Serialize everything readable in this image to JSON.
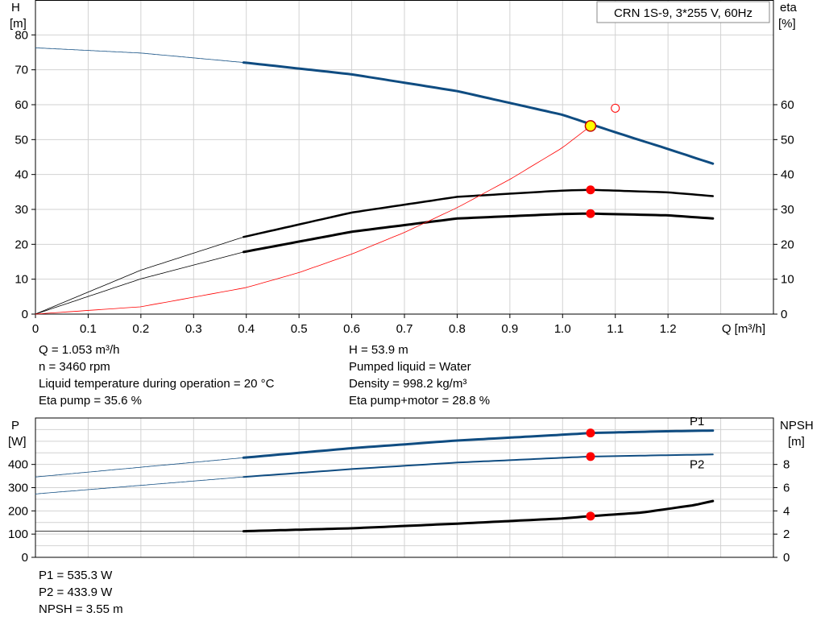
{
  "chart_data": [
    {
      "type": "line",
      "title": "CRN 1S-9, 3*255 V, 60Hz",
      "xlabel": "Q [m³/h]",
      "ylabel_left": "H",
      "ylabel_left_unit": "[m]",
      "ylabel_right": "eta",
      "ylabel_right_unit": "[%]",
      "xlim": [
        0,
        1.4
      ],
      "ylim_left": [
        0,
        90
      ],
      "ylim_right": [
        0,
        90
      ],
      "grid": true,
      "x_ticks": [
        "0",
        "0.1",
        "0.2",
        "0.3",
        "0.4",
        "0.5",
        "0.6",
        "0.7",
        "0.8",
        "0.9",
        "1.0",
        "1.1",
        "1.2"
      ],
      "y_left_ticks": [
        "0",
        "10",
        "20",
        "30",
        "40",
        "50",
        "60",
        "70",
        "80"
      ],
      "y_right_ticks": [
        "0",
        "10",
        "20",
        "30",
        "40",
        "50",
        "60"
      ],
      "series": [
        {
          "color": "#0f4c81",
          "axis": "left",
          "x": [
            0,
            0.2,
            0.395,
            0.6,
            0.8,
            1.0,
            1.1,
            1.2,
            1.285
          ],
          "y": [
            76.3,
            74.8,
            72.1,
            68.7,
            63.9,
            57.1,
            52.1,
            47.3,
            43.1
          ],
          "operating_range": [
            0.395,
            1.285
          ]
        },
        {
          "color": "#000000",
          "axis": "right",
          "x": [
            0,
            0.2,
            0.395,
            0.6,
            0.8,
            1.0,
            1.053,
            1.2,
            1.285
          ],
          "y": [
            0,
            12.6,
            22.1,
            29.1,
            33.6,
            35.4,
            35.6,
            34.9,
            33.8
          ],
          "operating_range": [
            0.395,
            1.285
          ]
        },
        {
          "color": "#000000",
          "axis": "right",
          "x": [
            0,
            0.2,
            0.395,
            0.6,
            0.8,
            1.0,
            1.053,
            1.2,
            1.285
          ],
          "y": [
            0,
            10.1,
            17.8,
            23.6,
            27.4,
            28.7,
            28.8,
            28.3,
            27.4
          ],
          "operating_range": [
            0.395,
            1.285
          ]
        },
        {
          "color": "#ff0000",
          "axis": "left",
          "x": [
            0,
            0.2,
            0.4,
            0.5,
            0.6,
            0.7,
            0.8,
            0.9,
            1.0,
            1.053
          ],
          "y": [
            0,
            2.1,
            7.6,
            11.9,
            17.2,
            23.4,
            30.5,
            38.6,
            47.7,
            53.9
          ]
        }
      ],
      "duty_points": [
        {
          "x": 1.053,
          "y": 53.9,
          "color": "#ffff00",
          "style": "filled-outlined"
        },
        {
          "x": 1.053,
          "y": 35.6,
          "color": "#ff0000",
          "style": "filled"
        },
        {
          "x": 1.053,
          "y": 28.8,
          "color": "#ff0000",
          "style": "filled"
        },
        {
          "x": 1.1,
          "y": 59,
          "color": "#ff0000",
          "style": "hollow"
        }
      ]
    },
    {
      "type": "line",
      "xlim": [
        0,
        1.4
      ],
      "ylabel_left": "P",
      "ylabel_left_unit": "[W]",
      "ylabel_right": "NPSH",
      "ylabel_right_unit": "[m]",
      "ylim_left": [
        0,
        600
      ],
      "ylim_right": [
        0,
        12
      ],
      "grid": true,
      "y_left_ticks": [
        "0",
        "100",
        "200",
        "300",
        "400"
      ],
      "y_right_ticks": [
        "0",
        "2",
        "4",
        "6",
        "8"
      ],
      "series": [
        {
          "name": "P1",
          "color": "#0f4c81",
          "axis": "left",
          "x": [
            0,
            0.395,
            0.6,
            0.8,
            1.0,
            1.053,
            1.2,
            1.285
          ],
          "y": [
            346,
            429,
            470,
            503,
            528,
            535.3,
            543,
            546
          ],
          "operating_range": [
            0.395,
            1.285
          ]
        },
        {
          "name": "P2",
          "color": "#0f4c81",
          "axis": "left",
          "x": [
            0,
            0.395,
            0.6,
            0.8,
            1.0,
            1.053,
            1.2,
            1.285
          ],
          "y": [
            273,
            346,
            380,
            408,
            429,
            433.9,
            440,
            443
          ],
          "operating_range": [
            0.395,
            1.285
          ]
        },
        {
          "color": "#000000",
          "axis": "right",
          "x": [
            0,
            0.395,
            0.6,
            0.8,
            1.0,
            1.053,
            1.15,
            1.25,
            1.285
          ],
          "y": [
            2.25,
            2.25,
            2.5,
            2.9,
            3.35,
            3.55,
            3.85,
            4.5,
            4.85
          ],
          "operating_range": [
            0.395,
            1.285
          ]
        }
      ],
      "duty_points": [
        {
          "x": 1.053,
          "y": 535.3,
          "axis": "left",
          "color": "#ff0000"
        },
        {
          "x": 1.053,
          "y": 433.9,
          "axis": "left",
          "color": "#ff0000"
        },
        {
          "x": 1.053,
          "y": 3.55,
          "axis": "right",
          "color": "#ff0000"
        }
      ]
    }
  ],
  "info_left": [
    "Q = 1.053 m³/h",
    "n = 3460 rpm",
    "Liquid temperature during operation = 20 °C",
    "Eta pump = 35.6 %"
  ],
  "info_right": [
    "H = 53.9 m",
    "Pumped liquid = Water",
    "Density = 998.2 kg/m³",
    "Eta pump+motor = 28.8 %"
  ],
  "info_bottom": [
    "P1 = 535.3 W",
    "P2 = 433.9 W",
    "NPSH = 3.55 m"
  ]
}
